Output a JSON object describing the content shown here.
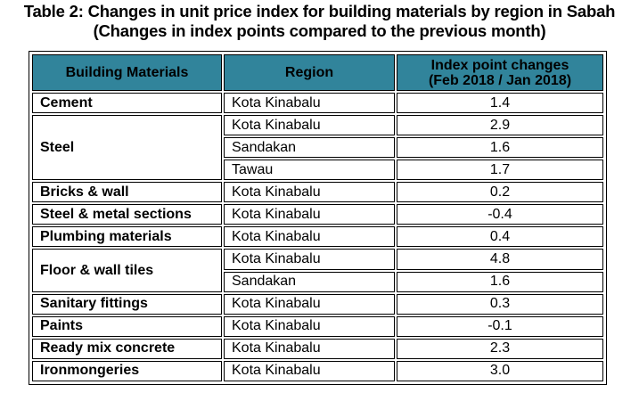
{
  "title": {
    "line1": "Table 2: Changes in unit price index for building materials by region in Sabah",
    "line2": "(Changes in index points compared to the previous month)"
  },
  "colors": {
    "header_bg": "#31849b"
  },
  "table": {
    "headers": {
      "material": "Building Materials",
      "region": "Region",
      "change_line1": "Index point changes",
      "change_line2": "(Feb 2018 / Jan 2018)"
    },
    "groups": [
      {
        "material": "Cement",
        "rows": [
          {
            "region": "Kota Kinabalu",
            "value": "1.4"
          }
        ]
      },
      {
        "material": "Steel",
        "rows": [
          {
            "region": "Kota Kinabalu",
            "value": "2.9"
          },
          {
            "region": "Sandakan",
            "value": "1.6"
          },
          {
            "region": "Tawau",
            "value": "1.7"
          }
        ]
      },
      {
        "material": "Bricks & wall",
        "rows": [
          {
            "region": "Kota Kinabalu",
            "value": "0.2"
          }
        ]
      },
      {
        "material": "Steel & metal sections",
        "rows": [
          {
            "region": "Kota Kinabalu",
            "value": "-0.4"
          }
        ]
      },
      {
        "material": "Plumbing materials",
        "rows": [
          {
            "region": "Kota Kinabalu",
            "value": "0.4"
          }
        ]
      },
      {
        "material": "Floor & wall tiles",
        "rows": [
          {
            "region": "Kota Kinabalu",
            "value": "4.8"
          },
          {
            "region": "Sandakan",
            "value": "1.6"
          }
        ]
      },
      {
        "material": "Sanitary fittings",
        "rows": [
          {
            "region": "Kota Kinabalu",
            "value": "0.3"
          }
        ]
      },
      {
        "material": "Paints",
        "rows": [
          {
            "region": "Kota Kinabalu",
            "value": "-0.1"
          }
        ]
      },
      {
        "material": "Ready mix concrete",
        "rows": [
          {
            "region": "Kota Kinabalu",
            "value": "2.3"
          }
        ]
      },
      {
        "material": "Ironmongeries",
        "rows": [
          {
            "region": "Kota Kinabalu",
            "value": "3.0"
          }
        ]
      }
    ]
  }
}
